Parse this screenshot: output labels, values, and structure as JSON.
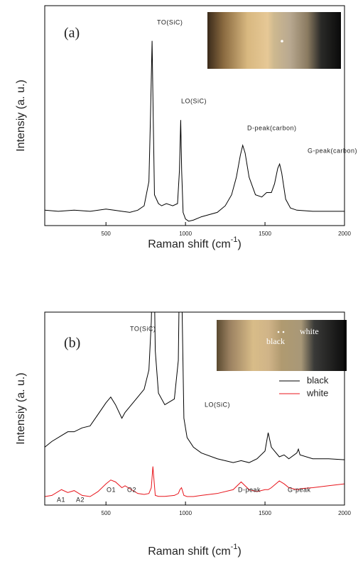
{
  "chart_data": [
    {
      "type": "line",
      "panel_label": "(a)",
      "x": [
        115,
        200,
        300,
        400,
        500,
        550,
        600,
        650,
        700,
        740,
        770,
        780,
        790,
        797,
        805,
        830,
        850,
        880,
        920,
        950,
        962,
        970,
        976,
        985,
        1000,
        1020,
        1050,
        1100,
        1150,
        1200,
        1250,
        1290,
        1320,
        1345,
        1360,
        1375,
        1400,
        1440,
        1480,
        1510,
        1540,
        1560,
        1580,
        1592,
        1605,
        1630,
        1660,
        1700,
        1800,
        1900,
        2000
      ],
      "values": [
        7,
        6.5,
        7,
        6.5,
        7.5,
        7,
        6.5,
        6,
        7,
        9,
        20,
        50,
        84,
        50,
        14,
        10,
        9,
        10,
        9,
        10,
        25,
        48,
        25,
        6,
        3,
        2,
        2.5,
        4,
        5,
        6,
        9,
        14,
        22,
        32,
        36.5,
        33,
        22,
        14,
        13,
        15,
        15,
        19,
        26,
        28,
        24,
        12,
        8,
        7,
        6.5,
        6.5,
        6.5
      ],
      "color": "#000000",
      "xlim": [
        115,
        2000
      ],
      "ylim": [
        0,
        100
      ],
      "xticks": [
        500,
        1000,
        1500,
        2000
      ],
      "x_label": [
        "Raman shift (cm",
        "-1",
        ")"
      ],
      "y_label": "Intensiy (a. u.)",
      "annotations": [
        "TO(SiC)",
        "LO(SiC)",
        "D-peak(carbon)",
        "G-peak(carbon)"
      ]
    },
    {
      "type": "line",
      "panel_label": "(b)",
      "x": [
        115,
        160,
        220,
        260,
        300,
        350,
        400,
        450,
        500,
        530,
        560,
        600,
        620,
        660,
        700,
        740,
        770,
        785,
        795,
        800,
        810,
        830,
        870,
        930,
        955,
        965,
        975,
        990,
        1010,
        1050,
        1100,
        1200,
        1300,
        1350,
        1400,
        1450,
        1500,
        1520,
        1540,
        1590,
        1620,
        1650,
        1700,
        1710,
        1720,
        1800,
        1900,
        2000
      ],
      "series": [
        {
          "name": "black",
          "color": "#000000",
          "values": [
            30,
            33,
            36,
            38,
            38,
            40,
            41,
            47,
            53,
            56,
            52,
            45,
            48,
            52,
            56,
            60,
            70,
            95,
            130,
            140,
            80,
            58,
            52,
            55,
            75,
            140,
            120,
            45,
            35,
            30,
            27,
            24,
            22,
            23,
            22,
            24,
            28,
            37.5,
            30,
            25,
            26,
            24,
            27,
            29,
            26,
            24,
            24,
            23.5
          ]
        },
        {
          "name": "white",
          "color": "#e8141b",
          "values": [
            4.4,
            5,
            8,
            6.5,
            7.5,
            5,
            4.4,
            7,
            11,
            13,
            12,
            9,
            10,
            8,
            6,
            5.5,
            6,
            9,
            20,
            15,
            5,
            4.5,
            4.5,
            5,
            6,
            8,
            9,
            5,
            4.4,
            4.4,
            5,
            6,
            8,
            12,
            8,
            7,
            8,
            8,
            9,
            12.5,
            11,
            9,
            8,
            8,
            8.5,
            9,
            10,
            11
          ]
        }
      ],
      "xlim": [
        115,
        2000
      ],
      "ylim": [
        0,
        100
      ],
      "xticks": [
        500,
        1000,
        1500,
        2000
      ],
      "x_label": [
        "Raman shift (cm",
        "-1",
        ")"
      ],
      "y_label": "Intensiy (a. u.)",
      "annotations": [
        "TO(SiC)",
        "LO(SiC)",
        "A1",
        "A2",
        "O1",
        "O2",
        "D-peak",
        "G-peak"
      ],
      "inset_labels": [
        "black",
        "white"
      ]
    }
  ]
}
